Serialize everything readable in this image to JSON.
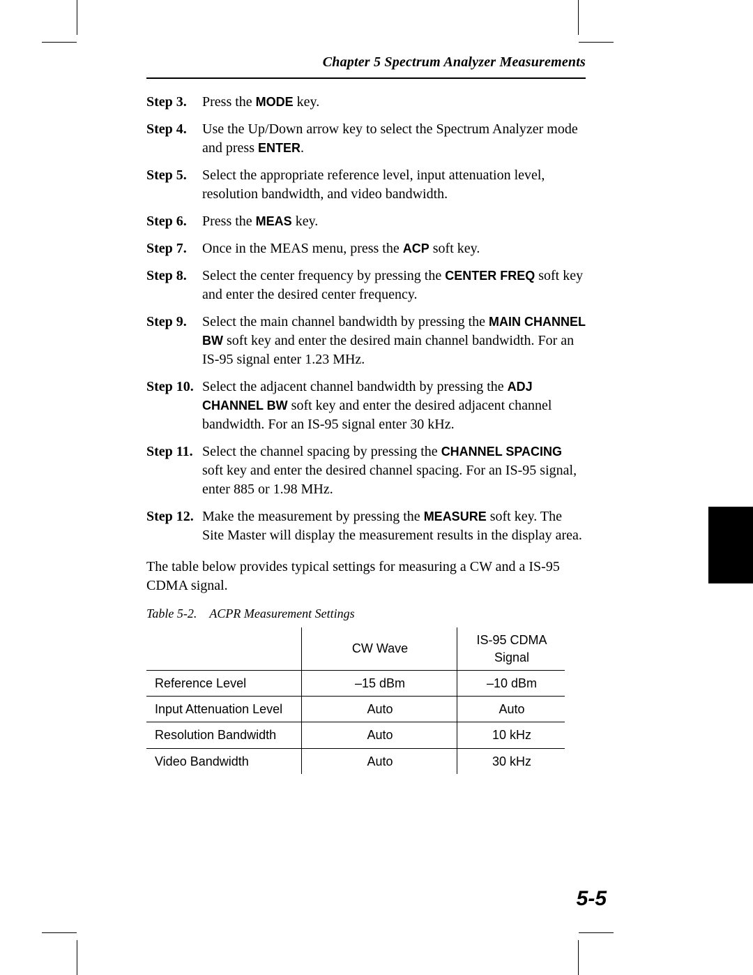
{
  "header": {
    "running_head": "Chapter 5 Spectrum Analyzer Measurements"
  },
  "steps": [
    {
      "label": "Step 3.",
      "segments": [
        {
          "t": "Press the "
        },
        {
          "t": "MODE",
          "sans": true
        },
        {
          "t": " key."
        }
      ]
    },
    {
      "label": "Step 4.",
      "segments": [
        {
          "t": "Use the Up/Down arrow key to select the Spectrum Analyzer mode and press "
        },
        {
          "t": "ENTER",
          "sans": true
        },
        {
          "t": "."
        }
      ]
    },
    {
      "label": "Step 5.",
      "segments": [
        {
          "t": "Select the appropriate reference level, input attenuation level, resolution bandwidth, and video bandwidth."
        }
      ]
    },
    {
      "label": "Step 6.",
      "segments": [
        {
          "t": "Press the "
        },
        {
          "t": "MEAS",
          "sans": true
        },
        {
          "t": " key."
        }
      ]
    },
    {
      "label": "Step 7.",
      "segments": [
        {
          "t": "Once in the MEAS menu, press the "
        },
        {
          "t": "ACP",
          "sans": true
        },
        {
          "t": " soft key."
        }
      ]
    },
    {
      "label": "Step 8.",
      "segments": [
        {
          "t": "Select the center frequency by pressing the "
        },
        {
          "t": "CENTER FREQ",
          "sans": true
        },
        {
          "t": " soft key and enter the desired center frequency."
        }
      ]
    },
    {
      "label": "Step 9.",
      "segments": [
        {
          "t": "Select the main channel bandwidth by pressing the "
        },
        {
          "t": "MAIN CHANNEL BW",
          "sans": true
        },
        {
          "t": " soft key and enter the desired main channel bandwidth. For an IS-95 signal enter 1.23 MHz."
        }
      ]
    },
    {
      "label": "Step 10.",
      "segments": [
        {
          "t": "Select the adjacent channel bandwidth by pressing the "
        },
        {
          "t": "ADJ CHANNEL BW",
          "sans": true
        },
        {
          "t": " soft key and enter the desired adjacent channel bandwidth. For an IS-95 signal enter 30 kHz."
        }
      ]
    },
    {
      "label": "Step 11.",
      "segments": [
        {
          "t": "Select the channel spacing by pressing the "
        },
        {
          "t": "CHANNEL SPACING",
          "sans": true
        },
        {
          "t": " soft key and enter the desired channel spacing. For an IS-95 signal, enter 885 or 1.98 MHz."
        }
      ]
    },
    {
      "label": "Step 12.",
      "segments": [
        {
          "t": "Make the measurement by pressing the "
        },
        {
          "t": "MEASURE",
          "sans": true
        },
        {
          "t": " soft key. The Site Master will display the measurement results in the display area."
        }
      ]
    }
  ],
  "paragraph": "The table below provides typical settings for measuring a CW and a IS-95 CDMA signal.",
  "table": {
    "caption_num": "Table 5-2.",
    "caption_title": "ACPR Measurement Settings",
    "columns": [
      "",
      "CW Wave",
      "IS-95 CDMA Signal"
    ],
    "rows": [
      [
        "Reference Level",
        "–15 dBm",
        "–10 dBm"
      ],
      [
        "Input Attenuation Level",
        "Auto",
        "Auto"
      ],
      [
        "Resolution Bandwidth",
        "Auto",
        "10 kHz"
      ],
      [
        "Video Bandwidth",
        "Auto",
        "30 kHz"
      ]
    ]
  },
  "page_number": "5-5"
}
